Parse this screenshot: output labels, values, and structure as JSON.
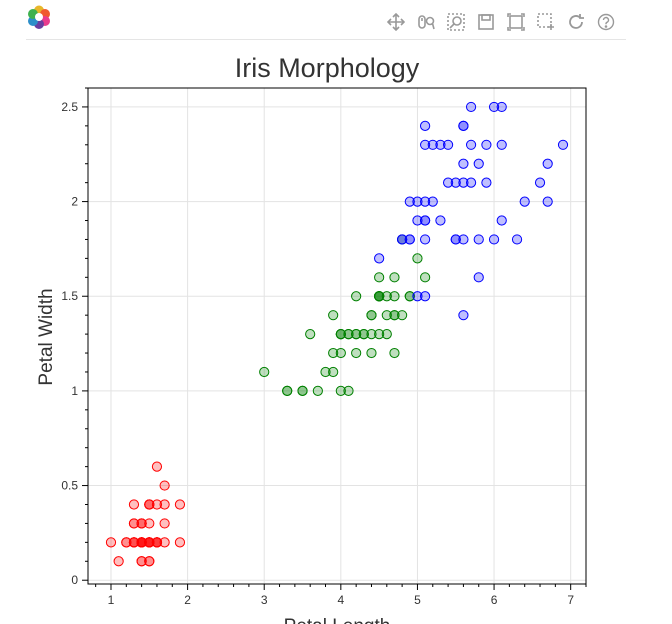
{
  "toolbar": {
    "logo": "bokeh-logo",
    "tools": [
      {
        "name": "pan-tool-icon"
      },
      {
        "name": "wheel-zoom-tool-icon"
      },
      {
        "name": "box-zoom-tool-icon"
      },
      {
        "name": "save-tool-icon"
      },
      {
        "name": "reset-view-icon"
      },
      {
        "name": "box-select-tool-icon"
      },
      {
        "name": "refresh-icon"
      },
      {
        "name": "help-icon"
      }
    ]
  },
  "chart_data": {
    "type": "scatter",
    "title": "Iris Morphology",
    "xlabel": "Petal Length",
    "ylabel": "Petal Width",
    "xlim": [
      0.7,
      7.2
    ],
    "ylim": [
      -0.02,
      2.6
    ],
    "xticks": [
      "1",
      "2",
      "3",
      "4",
      "5",
      "6",
      "7"
    ],
    "yticks": [
      "0",
      "0.5",
      "1",
      "1.5",
      "2",
      "2.5"
    ],
    "grid": true,
    "series": [
      {
        "color": "#ff0000",
        "points": [
          [
            1.4,
            0.2
          ],
          [
            1.4,
            0.2
          ],
          [
            1.3,
            0.2
          ],
          [
            1.5,
            0.2
          ],
          [
            1.4,
            0.2
          ],
          [
            1.7,
            0.4
          ],
          [
            1.4,
            0.3
          ],
          [
            1.5,
            0.2
          ],
          [
            1.4,
            0.2
          ],
          [
            1.5,
            0.1
          ],
          [
            1.5,
            0.2
          ],
          [
            1.6,
            0.2
          ],
          [
            1.4,
            0.1
          ],
          [
            1.1,
            0.1
          ],
          [
            1.2,
            0.2
          ],
          [
            1.5,
            0.4
          ],
          [
            1.3,
            0.4
          ],
          [
            1.4,
            0.3
          ],
          [
            1.7,
            0.3
          ],
          [
            1.5,
            0.3
          ],
          [
            1.7,
            0.2
          ],
          [
            1.5,
            0.4
          ],
          [
            1.0,
            0.2
          ],
          [
            1.7,
            0.5
          ],
          [
            1.9,
            0.2
          ],
          [
            1.6,
            0.2
          ],
          [
            1.6,
            0.4
          ],
          [
            1.5,
            0.2
          ],
          [
            1.4,
            0.2
          ],
          [
            1.6,
            0.2
          ],
          [
            1.6,
            0.2
          ],
          [
            1.5,
            0.4
          ],
          [
            1.5,
            0.1
          ],
          [
            1.4,
            0.2
          ],
          [
            1.5,
            0.2
          ],
          [
            1.2,
            0.2
          ],
          [
            1.3,
            0.2
          ],
          [
            1.4,
            0.1
          ],
          [
            1.3,
            0.2
          ],
          [
            1.5,
            0.2
          ],
          [
            1.3,
            0.3
          ],
          [
            1.3,
            0.3
          ],
          [
            1.3,
            0.2
          ],
          [
            1.6,
            0.6
          ],
          [
            1.9,
            0.4
          ],
          [
            1.4,
            0.3
          ],
          [
            1.6,
            0.2
          ],
          [
            1.4,
            0.2
          ],
          [
            1.5,
            0.2
          ],
          [
            1.4,
            0.2
          ]
        ]
      },
      {
        "color": "#008000",
        "points": [
          [
            4.7,
            1.4
          ],
          [
            4.5,
            1.5
          ],
          [
            4.9,
            1.5
          ],
          [
            4.0,
            1.3
          ],
          [
            4.6,
            1.5
          ],
          [
            4.5,
            1.3
          ],
          [
            4.7,
            1.6
          ],
          [
            3.3,
            1.0
          ],
          [
            4.6,
            1.3
          ],
          [
            3.9,
            1.4
          ],
          [
            3.5,
            1.0
          ],
          [
            4.2,
            1.5
          ],
          [
            4.0,
            1.0
          ],
          [
            4.7,
            1.4
          ],
          [
            3.6,
            1.3
          ],
          [
            4.4,
            1.4
          ],
          [
            4.5,
            1.5
          ],
          [
            4.1,
            1.0
          ],
          [
            4.5,
            1.5
          ],
          [
            3.9,
            1.1
          ],
          [
            4.8,
            1.8
          ],
          [
            4.0,
            1.3
          ],
          [
            4.9,
            1.5
          ],
          [
            4.7,
            1.2
          ],
          [
            4.3,
            1.3
          ],
          [
            4.4,
            1.4
          ],
          [
            4.8,
            1.4
          ],
          [
            5.0,
            1.7
          ],
          [
            4.5,
            1.5
          ],
          [
            3.5,
            1.0
          ],
          [
            3.8,
            1.1
          ],
          [
            3.7,
            1.0
          ],
          [
            3.9,
            1.2
          ],
          [
            5.1,
            1.6
          ],
          [
            4.5,
            1.5
          ],
          [
            4.5,
            1.6
          ],
          [
            4.7,
            1.5
          ],
          [
            4.4,
            1.3
          ],
          [
            4.1,
            1.3
          ],
          [
            4.0,
            1.3
          ],
          [
            4.4,
            1.2
          ],
          [
            4.6,
            1.4
          ],
          [
            4.0,
            1.2
          ],
          [
            3.3,
            1.0
          ],
          [
            4.2,
            1.3
          ],
          [
            4.2,
            1.2
          ],
          [
            4.2,
            1.3
          ],
          [
            4.3,
            1.3
          ],
          [
            3.0,
            1.1
          ],
          [
            4.1,
            1.3
          ]
        ]
      },
      {
        "color": "#0000ff",
        "points": [
          [
            6.0,
            2.5
          ],
          [
            5.1,
            1.9
          ],
          [
            5.9,
            2.1
          ],
          [
            5.6,
            1.8
          ],
          [
            5.8,
            2.2
          ],
          [
            6.6,
            2.1
          ],
          [
            4.5,
            1.7
          ],
          [
            6.3,
            1.8
          ],
          [
            5.8,
            1.8
          ],
          [
            6.1,
            2.5
          ],
          [
            5.1,
            2.0
          ],
          [
            5.3,
            1.9
          ],
          [
            5.5,
            2.1
          ],
          [
            5.0,
            2.0
          ],
          [
            5.1,
            2.4
          ],
          [
            5.3,
            2.3
          ],
          [
            5.5,
            1.8
          ],
          [
            6.7,
            2.2
          ],
          [
            6.9,
            2.3
          ],
          [
            5.0,
            1.5
          ],
          [
            5.7,
            2.3
          ],
          [
            4.9,
            2.0
          ],
          [
            6.7,
            2.0
          ],
          [
            4.9,
            1.8
          ],
          [
            5.7,
            2.1
          ],
          [
            6.0,
            1.8
          ],
          [
            4.8,
            1.8
          ],
          [
            4.9,
            1.8
          ],
          [
            5.6,
            2.1
          ],
          [
            5.8,
            1.6
          ],
          [
            6.1,
            1.9
          ],
          [
            6.4,
            2.0
          ],
          [
            5.6,
            2.2
          ],
          [
            5.1,
            1.5
          ],
          [
            5.6,
            1.4
          ],
          [
            6.1,
            2.3
          ],
          [
            5.6,
            2.4
          ],
          [
            5.5,
            1.8
          ],
          [
            4.8,
            1.8
          ],
          [
            5.4,
            2.1
          ],
          [
            5.6,
            2.4
          ],
          [
            5.1,
            2.3
          ],
          [
            5.1,
            1.9
          ],
          [
            5.9,
            2.3
          ],
          [
            5.7,
            2.5
          ],
          [
            5.2,
            2.3
          ],
          [
            5.0,
            1.9
          ],
          [
            5.2,
            2.0
          ],
          [
            5.4,
            2.3
          ],
          [
            5.1,
            1.8
          ]
        ]
      }
    ]
  }
}
